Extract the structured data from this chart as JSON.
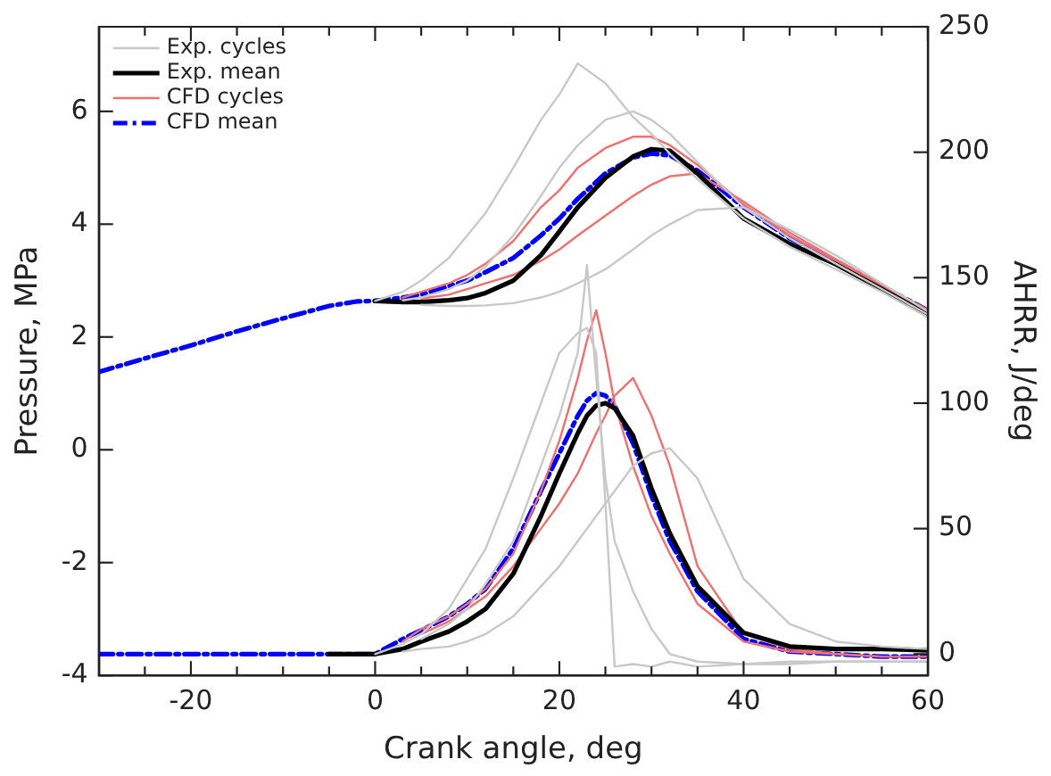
{
  "chart_data": {
    "type": "line",
    "xlabel": "Crank angle, deg",
    "ylabel": "Pressure, MPa",
    "y2label": "AHRR, J/deg",
    "xlim": [
      -30,
      60
    ],
    "xticks": [
      {
        "value": -25,
        "label": null
      },
      -20,
      {
        "value": -15,
        "label": null
      },
      {
        "value": -10,
        "label": null
      },
      {
        "value": -5,
        "label": null
      },
      0,
      {
        "value": 5,
        "label": null
      },
      {
        "value": 10,
        "label": null
      },
      {
        "value": 15,
        "label": null
      },
      20,
      {
        "value": 25,
        "label": null
      },
      {
        "value": 30,
        "label": null
      },
      {
        "value": 35,
        "label": null
      },
      40,
      {
        "value": 45,
        "label": null
      },
      {
        "value": 50,
        "label": null
      },
      {
        "value": 55,
        "label": null
      },
      60
    ],
    "ylim": [
      -4,
      7.5
    ],
    "yticks": [
      -4,
      -2,
      0,
      2,
      4,
      6
    ],
    "y2lim": [
      -8.5,
      250
    ],
    "y2ticks": [
      0,
      50,
      100,
      150,
      200,
      250
    ],
    "legend": "top left",
    "series": [
      {
        "name": "Exp. cycles",
        "color": "#c8c8c8",
        "x": [
          0,
          3,
          5,
          8,
          10,
          12,
          15,
          18,
          20,
          22,
          25,
          28,
          30,
          32,
          35,
          40,
          45,
          50,
          55,
          60
        ],
        "values": [
          2.64,
          2.8,
          3.0,
          3.4,
          3.8,
          4.2,
          5.0,
          5.85,
          6.3,
          6.85,
          6.5,
          5.9,
          5.6,
          5.25,
          4.8,
          4.1,
          3.6,
          3.2,
          2.8,
          2.35
        ]
      },
      {
        "color": "#c8c8c8",
        "x": [
          5,
          8,
          10,
          12,
          15,
          18,
          20,
          22,
          25,
          28,
          30,
          32,
          35,
          40,
          45,
          50,
          55,
          60
        ],
        "values": [
          2.57,
          2.55,
          2.55,
          2.56,
          2.6,
          2.7,
          2.8,
          2.95,
          3.2,
          3.55,
          3.8,
          4.0,
          4.25,
          4.3,
          3.9,
          3.45,
          2.95,
          2.45
        ]
      },
      {
        "color": "#c8c8c8",
        "x": [
          3,
          5,
          8,
          10,
          12,
          15,
          18,
          20,
          22,
          25,
          28,
          30,
          32,
          35,
          40,
          45,
          50,
          55,
          60
        ],
        "values": [
          2.65,
          2.7,
          2.85,
          3.0,
          3.25,
          3.8,
          4.5,
          5.0,
          5.4,
          5.85,
          6.0,
          5.85,
          5.6,
          5.1,
          4.3,
          3.75,
          3.3,
          2.85,
          2.4
        ]
      },
      {
        "color": "#c8c8c8",
        "axis": "y2",
        "x": [
          0,
          3,
          5,
          8,
          10,
          12,
          15,
          18,
          20,
          22,
          23,
          24,
          25,
          26,
          28,
          30,
          32,
          35,
          40,
          45,
          50,
          55,
          60
        ],
        "values": [
          0,
          4,
          8,
          18,
          30,
          42,
          70,
          100,
          120,
          128,
          130,
          120,
          60,
          -5,
          -4,
          -5,
          -3,
          -5,
          -4,
          -4,
          -3,
          -3,
          -3
        ]
      },
      {
        "color": "#c8c8c8",
        "axis": "y2",
        "x": [
          3,
          5,
          8,
          10,
          12,
          15,
          18,
          20,
          22,
          23,
          24,
          25,
          26,
          28,
          30,
          32,
          35,
          40,
          45,
          50,
          55,
          60
        ],
        "values": [
          1,
          2,
          3,
          5,
          8,
          15,
          27,
          35,
          45,
          50,
          55,
          60,
          65,
          75,
          80,
          82,
          70,
          30,
          12,
          5,
          3,
          2
        ]
      },
      {
        "color": "#c8c8c8",
        "axis": "y2",
        "x": [
          5,
          8,
          10,
          12,
          15,
          18,
          20,
          22,
          23,
          24,
          25,
          26,
          28,
          30,
          32,
          35,
          40,
          45,
          50,
          55,
          60
        ],
        "values": [
          6,
          12,
          18,
          28,
          45,
          75,
          95,
          120,
          155,
          110,
          70,
          45,
          25,
          10,
          0,
          -3,
          -4,
          -3,
          -3,
          -3,
          -3
        ]
      },
      {
        "name": "Exp. mean",
        "color": "#000000",
        "line_style": "solid",
        "x": [
          0,
          3,
          5,
          8,
          10,
          12,
          15,
          18,
          20,
          22,
          25,
          28,
          30,
          32,
          35,
          40,
          45,
          50,
          55,
          60
        ],
        "values": [
          2.64,
          2.62,
          2.62,
          2.65,
          2.69,
          2.78,
          3.0,
          3.45,
          3.87,
          4.3,
          4.82,
          5.2,
          5.33,
          5.3,
          4.9,
          4.1,
          3.65,
          3.29,
          2.85,
          2.4
        ]
      },
      {
        "color": "#000000",
        "line_style": "solid",
        "axis": "y2",
        "x": [
          -5,
          0,
          3,
          5,
          8,
          10,
          12,
          15,
          18,
          20,
          22,
          23,
          24,
          25,
          26,
          28,
          30,
          32,
          35,
          40,
          45,
          50,
          55,
          60
        ],
        "values": [
          0,
          0,
          2,
          5,
          9,
          13,
          18,
          32,
          55,
          72,
          88,
          95,
          99,
          100,
          98,
          87,
          66,
          48,
          27,
          8.5,
          3,
          2,
          2,
          1.5
        ]
      },
      {
        "name": "CFD cycles",
        "color": "#f07070",
        "x": [
          3,
          5,
          8,
          10,
          12,
          15,
          18,
          20,
          22,
          25,
          28,
          30,
          32,
          35,
          40,
          45,
          50,
          55,
          60
        ],
        "values": [
          2.7,
          2.8,
          2.95,
          3.1,
          3.3,
          3.7,
          4.3,
          4.6,
          5.0,
          5.35,
          5.55,
          5.55,
          5.4,
          5.05,
          4.35,
          3.8,
          3.35,
          2.9,
          2.47
        ]
      },
      {
        "color": "#f07070",
        "x": [
          5,
          8,
          10,
          12,
          15,
          18,
          20,
          22,
          25,
          28,
          30,
          32,
          35,
          40,
          45,
          50,
          55,
          60
        ],
        "values": [
          2.68,
          2.75,
          2.85,
          2.95,
          3.1,
          3.35,
          3.55,
          3.8,
          4.15,
          4.5,
          4.7,
          4.85,
          4.9,
          4.4,
          3.85,
          3.38,
          2.92,
          2.48
        ]
      },
      {
        "color": "#f07070",
        "axis": "y2",
        "x": [
          3,
          5,
          8,
          10,
          12,
          15,
          18,
          20,
          22,
          23,
          24,
          25,
          26,
          28,
          30,
          32,
          35,
          40,
          45,
          50,
          55,
          60
        ],
        "values": [
          5,
          10,
          15,
          20,
          26,
          40,
          65,
          85,
          110,
          125,
          137,
          120,
          100,
          75,
          55,
          40,
          20,
          5,
          1,
          0,
          -1,
          -1
        ]
      },
      {
        "color": "#f07070",
        "axis": "y2",
        "x": [
          5,
          8,
          10,
          12,
          15,
          18,
          20,
          22,
          23,
          24,
          25,
          26,
          28,
          30,
          32,
          35,
          40,
          45,
          50,
          55,
          60
        ],
        "values": [
          8,
          13,
          18,
          23,
          35,
          50,
          60,
          72,
          80,
          88,
          95,
          103,
          110,
          95,
          75,
          35,
          8,
          2,
          0,
          -1,
          -1
        ]
      },
      {
        "name": "CFD mean",
        "color": "#0000ff",
        "line_style": "dashed",
        "x": [
          -30,
          -25,
          -20,
          -15,
          -10,
          -5,
          -2,
          0,
          3,
          5,
          8,
          10,
          12,
          15,
          18,
          20,
          22,
          25,
          28,
          30,
          32,
          35,
          40,
          45,
          50,
          55,
          60
        ],
        "values": [
          1.38,
          1.62,
          1.85,
          2.1,
          2.33,
          2.55,
          2.63,
          2.64,
          2.7,
          2.75,
          2.9,
          3.0,
          3.15,
          3.4,
          3.8,
          4.1,
          4.45,
          4.9,
          5.18,
          5.25,
          5.22,
          4.95,
          4.3,
          3.75,
          3.35,
          2.9,
          2.47
        ]
      },
      {
        "color": "#0000ff",
        "line_style": "dashed",
        "axis": "y2",
        "x": [
          -30,
          -5,
          0,
          3,
          5,
          8,
          10,
          12,
          15,
          18,
          20,
          22,
          23,
          24,
          25,
          26,
          28,
          30,
          32,
          35,
          40,
          45,
          50,
          55,
          60
        ],
        "values": [
          0,
          0,
          0,
          6,
          9.5,
          15,
          20,
          26,
          42,
          65,
          80,
          95,
          101,
          104,
          103,
          99,
          84,
          63,
          45,
          25,
          6,
          1,
          0,
          -1,
          -1
        ]
      }
    ]
  }
}
